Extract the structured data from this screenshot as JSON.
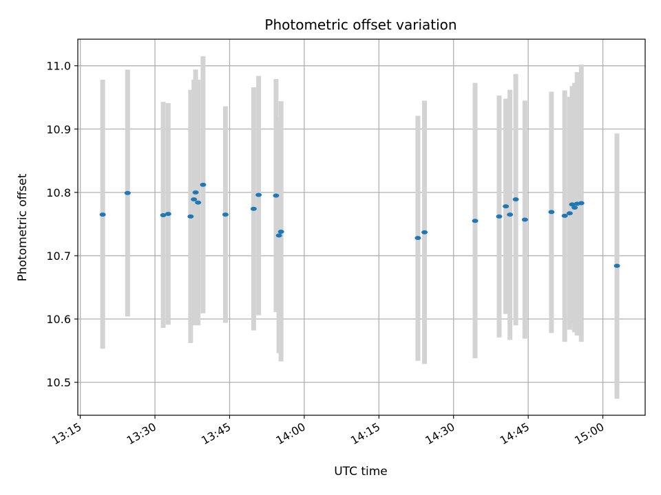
{
  "chart_data": {
    "type": "scatter",
    "title": "Photometric offset variation",
    "xlabel": "UTC time",
    "ylabel": "Photometric offset",
    "x_ticks": [
      "13:15",
      "13:30",
      "13:45",
      "14:00",
      "14:15",
      "14:30",
      "14:45",
      "15:00"
    ],
    "y_ticks": [
      "10.5",
      "10.6",
      "10.7",
      "10.8",
      "10.9",
      "11.0"
    ],
    "xlim": [
      "13:14:30",
      "15:08:30"
    ],
    "ylim": [
      10.448,
      11.042
    ],
    "grid": true,
    "marker_color": "#1f77b4",
    "errorbar_color": "#d3d3d3",
    "points": [
      {
        "t": "13:19:30",
        "y": 10.765,
        "lo": 10.553,
        "hi": 10.978
      },
      {
        "t": "13:24:30",
        "y": 10.799,
        "lo": 10.604,
        "hi": 10.994
      },
      {
        "t": "13:31:40",
        "y": 10.764,
        "lo": 10.586,
        "hi": 10.943
      },
      {
        "t": "13:32:40",
        "y": 10.766,
        "lo": 10.591,
        "hi": 10.941
      },
      {
        "t": "13:37:10",
        "y": 10.762,
        "lo": 10.562,
        "hi": 10.962
      },
      {
        "t": "13:37:50",
        "y": 10.789,
        "lo": 10.59,
        "hi": 10.978
      },
      {
        "t": "13:38:10",
        "y": 10.8,
        "lo": 10.605,
        "hi": 10.994
      },
      {
        "t": "13:38:40",
        "y": 10.784,
        "lo": 10.59,
        "hi": 10.978
      },
      {
        "t": "13:39:40",
        "y": 10.812,
        "lo": 10.609,
        "hi": 11.015
      },
      {
        "t": "13:44:10",
        "y": 10.765,
        "lo": 10.594,
        "hi": 10.936
      },
      {
        "t": "13:49:50",
        "y": 10.774,
        "lo": 10.582,
        "hi": 10.966
      },
      {
        "t": "13:50:50",
        "y": 10.796,
        "lo": 10.606,
        "hi": 10.984
      },
      {
        "t": "13:54:20",
        "y": 10.795,
        "lo": 10.611,
        "hi": 10.979
      },
      {
        "t": "13:54:55",
        "y": 10.732,
        "lo": 10.546,
        "hi": 10.919
      },
      {
        "t": "13:55:20",
        "y": 10.738,
        "lo": 10.533,
        "hi": 10.944
      },
      {
        "t": "14:22:50",
        "y": 10.728,
        "lo": 10.534,
        "hi": 10.921
      },
      {
        "t": "14:24:10",
        "y": 10.737,
        "lo": 10.529,
        "hi": 10.945
      },
      {
        "t": "14:34:20",
        "y": 10.755,
        "lo": 10.538,
        "hi": 10.973
      },
      {
        "t": "14:39:10",
        "y": 10.762,
        "lo": 10.571,
        "hi": 10.953
      },
      {
        "t": "14:40:30",
        "y": 10.778,
        "lo": 10.608,
        "hi": 10.948
      },
      {
        "t": "14:41:20",
        "y": 10.765,
        "lo": 10.567,
        "hi": 10.962
      },
      {
        "t": "14:42:30",
        "y": 10.789,
        "lo": 10.59,
        "hi": 10.987
      },
      {
        "t": "14:44:20",
        "y": 10.757,
        "lo": 10.569,
        "hi": 10.945
      },
      {
        "t": "14:49:40",
        "y": 10.769,
        "lo": 10.578,
        "hi": 10.959
      },
      {
        "t": "14:52:20",
        "y": 10.763,
        "lo": 10.564,
        "hi": 10.961
      },
      {
        "t": "14:53:20",
        "y": 10.767,
        "lo": 10.583,
        "hi": 10.951
      },
      {
        "t": "14:53:50",
        "y": 10.781,
        "lo": 10.593,
        "hi": 10.968
      },
      {
        "t": "14:54:20",
        "y": 10.776,
        "lo": 10.579,
        "hi": 10.973
      },
      {
        "t": "14:54:50",
        "y": 10.782,
        "lo": 10.574,
        "hi": 10.99
      },
      {
        "t": "14:55:40",
        "y": 10.783,
        "lo": 10.564,
        "hi": 11.002
      },
      {
        "t": "15:02:50",
        "y": 10.684,
        "lo": 10.474,
        "hi": 10.893
      }
    ]
  }
}
